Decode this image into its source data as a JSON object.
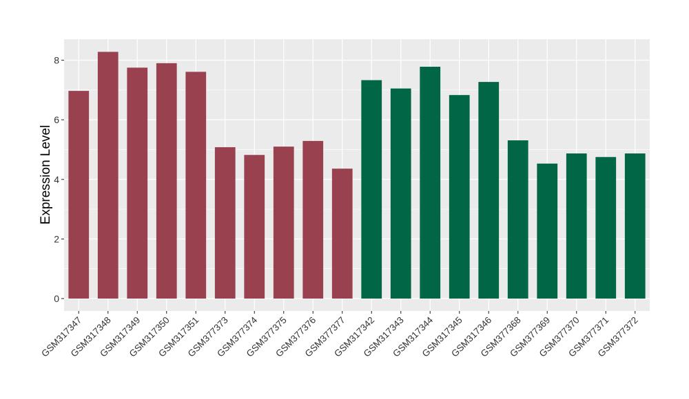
{
  "chart_data": {
    "type": "bar",
    "title": "",
    "xlabel": "",
    "ylabel": "Expression Level",
    "ylim": [
      0,
      8.6
    ],
    "yticks": [
      0,
      2,
      4,
      6,
      8
    ],
    "yticklabels": [
      "0",
      "2",
      "4",
      "6",
      "8"
    ],
    "grid": true,
    "legend": "none",
    "categories": [
      "GSM317347",
      "GSM317348",
      "GSM317349",
      "GSM317350",
      "GSM317351",
      "GSM377373",
      "GSM377374",
      "GSM377375",
      "GSM377376",
      "GSM377377",
      "GSM317342",
      "GSM317343",
      "GSM317344",
      "GSM317345",
      "GSM317346",
      "GSM377368",
      "GSM377369",
      "GSM377370",
      "GSM377371",
      "GSM377372"
    ],
    "values": [
      6.97,
      8.28,
      7.75,
      7.9,
      7.61,
      5.08,
      4.82,
      5.1,
      5.29,
      4.36,
      7.33,
      7.05,
      7.78,
      6.83,
      7.27,
      5.31,
      4.53,
      4.87,
      4.75,
      4.87
    ],
    "bar_colors": [
      "#99414f",
      "#99414f",
      "#99414f",
      "#99414f",
      "#99414f",
      "#99414f",
      "#99414f",
      "#99414f",
      "#99414f",
      "#99414f",
      "#006646",
      "#006646",
      "#006646",
      "#006646",
      "#006646",
      "#006646",
      "#006646",
      "#006646",
      "#006646",
      "#006646"
    ],
    "panel_color": "#ebebeb",
    "grid_color": "#ffffff"
  }
}
